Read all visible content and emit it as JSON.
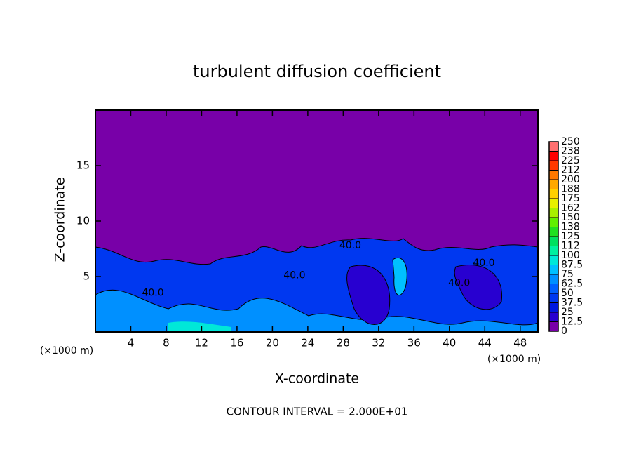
{
  "chart_data": {
    "type": "contour",
    "title": "turbulent diffusion coefficient",
    "xlabel": "X-coordinate",
    "ylabel": "Z-coordinate",
    "x_unit_label": "(×1000 m)",
    "footer": "CONTOUR INTERVAL = 2.000E+01",
    "xlim": [
      0,
      50
    ],
    "xticks": [
      4,
      8,
      12,
      16,
      20,
      24,
      28,
      32,
      36,
      40,
      44,
      48
    ],
    "ylim": [
      0,
      20
    ],
    "yticks": [
      5,
      10,
      15
    ],
    "levels": [
      0,
      12.5,
      25,
      37.5,
      50,
      62.5,
      75,
      87.5,
      100,
      {
        "value": 112.5,
        "label": "112"
      },
      125,
      {
        "value": 137.5,
        "label": "138"
      },
      150,
      {
        "value": 162.5,
        "label": "162"
      },
      175,
      {
        "value": 187.5,
        "label": "188"
      },
      200,
      {
        "value": 212.5,
        "label": "212"
      },
      225,
      {
        "value": 237.5,
        "label": "238"
      },
      250
    ],
    "colors": [
      "#7800a8",
      "#2800d0",
      "#0018e0",
      "#0038f0",
      "#0060ff",
      "#0090ff",
      "#00c0ff",
      "#00e8d8",
      "#00f0a0",
      "#00e060",
      "#20e020",
      "#60f000",
      "#a8f000",
      "#e8f000",
      "#ffd000",
      "#ffa800",
      "#ff7800",
      "#ff3800",
      "#ff0000",
      "#ff7070"
    ],
    "contour_labels": [
      {
        "text": "40.0",
        "x": 28.8,
        "y": 7.8
      },
      {
        "text": "40.0",
        "x": 22.5,
        "y": 5.1
      },
      {
        "text": "40.0",
        "x": 6.5,
        "y": 3.5
      },
      {
        "text": "40.0",
        "x": 43.9,
        "y": 6.2
      },
      {
        "text": "40.0",
        "x": 41.1,
        "y": 4.4
      }
    ]
  }
}
